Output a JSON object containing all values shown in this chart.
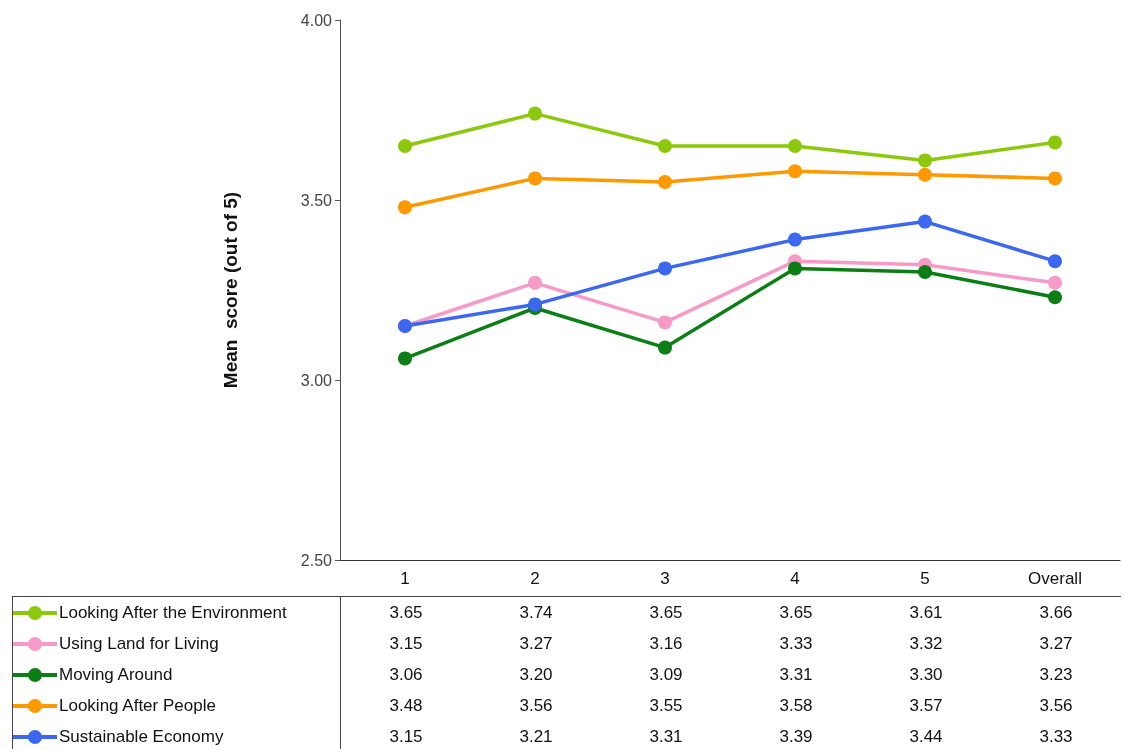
{
  "chart_data": {
    "type": "line",
    "ylabel": "Mean  score (out of 5)",
    "categories": [
      "1",
      "2",
      "3",
      "4",
      "5",
      "Overall"
    ],
    "ylim": [
      2.5,
      4
    ],
    "yticks": [
      {
        "value": 2.5,
        "label": "2.50"
      },
      {
        "value": 3,
        "label": "3.00"
      },
      {
        "value": 3.5,
        "label": "3.50"
      },
      {
        "value": 4,
        "label": "4.00"
      }
    ],
    "grid": false,
    "legend": "bottom",
    "marker": "circle",
    "line_style": "solid",
    "series": [
      {
        "name": "Looking After the Environment",
        "color": "#8cc90c",
        "values": [
          3.65,
          3.74,
          3.65,
          3.65,
          3.61,
          3.66
        ],
        "value_labels": [
          "3.65",
          "3.74",
          "3.65",
          "3.65",
          "3.61",
          "3.66"
        ]
      },
      {
        "name": "Using Land for Living",
        "color": "#f79ac8",
        "values": [
          3.15,
          3.27,
          3.16,
          3.33,
          3.32,
          3.27
        ],
        "value_labels": [
          "3.15",
          "3.27",
          "3.16",
          "3.33",
          "3.32",
          "3.27"
        ]
      },
      {
        "name": "Moving Around",
        "color": "#0b7f16",
        "values": [
          3.06,
          3.2,
          3.09,
          3.31,
          3.3,
          3.23
        ],
        "value_labels": [
          "3.06",
          "3.20",
          "3.09",
          "3.31",
          "3.30",
          "3.23"
        ]
      },
      {
        "name": "Looking After People",
        "color": "#ff9900",
        "values": [
          3.48,
          3.56,
          3.55,
          3.58,
          3.57,
          3.56
        ],
        "value_labels": [
          "3.48",
          "3.56",
          "3.55",
          "3.58",
          "3.57",
          "3.56"
        ]
      },
      {
        "name": "Sustainable Economy",
        "color": "#3c68f0",
        "values": [
          3.15,
          3.21,
          3.31,
          3.39,
          3.44,
          3.33
        ],
        "value_labels": [
          "3.15",
          "3.21",
          "3.31",
          "3.39",
          "3.44",
          "3.33"
        ]
      }
    ]
  }
}
